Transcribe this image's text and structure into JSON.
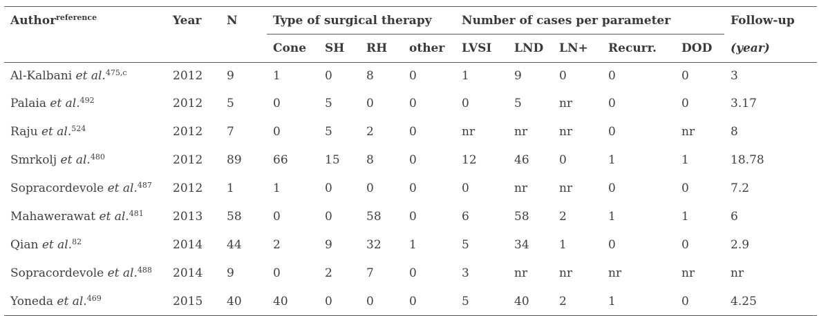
{
  "header": {
    "author": "Author",
    "author_sup": "reference",
    "year": "Year",
    "n": "N",
    "surgery_group": "Type of surgical therapy",
    "parameter_group": "Number of cases per parameter",
    "followup": "Follow-up",
    "followup_unit": "(year)",
    "sub": [
      "Cone",
      "SH",
      "RH",
      "other",
      "LVSI",
      "LND",
      "LN+",
      "Recurr.",
      "DOD"
    ]
  },
  "rows": [
    {
      "name": "Al-Kalbani",
      "etal": "et al.",
      "ref": "475,c",
      "cells": [
        "2012",
        "9",
        "1",
        "0",
        "8",
        "0",
        "1",
        "9",
        "0",
        "0",
        "0",
        "3"
      ]
    },
    {
      "name": "Palaia",
      "etal": "et al.",
      "ref": "492",
      "cells": [
        "2012",
        "5",
        "0",
        "5",
        "0",
        "0",
        "0",
        "5",
        "nr",
        "0",
        "0",
        "3.17"
      ]
    },
    {
      "name": "Raju",
      "etal": "et al.",
      "ref": "524",
      "cells": [
        "2012",
        "7",
        "0",
        "5",
        "2",
        "0",
        "nr",
        "nr",
        "nr",
        "0",
        "nr",
        "8"
      ]
    },
    {
      "name": "Smrkolj",
      "etal": "et al.",
      "ref": "480",
      "cells": [
        "2012",
        "89",
        "66",
        "15",
        "8",
        "0",
        "12",
        "46",
        "0",
        "1",
        "1",
        "18.78"
      ]
    },
    {
      "name": "Sopracordevole",
      "etal": "et al.",
      "ref": "487",
      "cells": [
        "2012",
        "1",
        "1",
        "0",
        "0",
        "0",
        "0",
        "nr",
        "nr",
        "0",
        "0",
        "7.2"
      ]
    },
    {
      "name": "Mahawerawat",
      "etal": "et al.",
      "ref": "481",
      "cells": [
        "2013",
        "58",
        "0",
        "0",
        "58",
        "0",
        "6",
        "58",
        "2",
        "1",
        "1",
        "6"
      ]
    },
    {
      "name": "Qian",
      "etal": "et al.",
      "ref": "82",
      "cells": [
        "2014",
        "44",
        "2",
        "9",
        "32",
        "1",
        "5",
        "34",
        "1",
        "0",
        "0",
        "2.9"
      ]
    },
    {
      "name": "Sopracordevole",
      "etal": "et al.",
      "ref": "488",
      "cells": [
        "2014",
        "9",
        "0",
        "2",
        "7",
        "0",
        "3",
        "nr",
        "nr",
        "nr",
        "nr",
        "nr"
      ]
    },
    {
      "name": "Yoneda",
      "etal": "et al.",
      "ref": "469",
      "cells": [
        "2015",
        "40",
        "40",
        "0",
        "0",
        "0",
        "5",
        "40",
        "2",
        "1",
        "0",
        "4.25"
      ]
    }
  ]
}
